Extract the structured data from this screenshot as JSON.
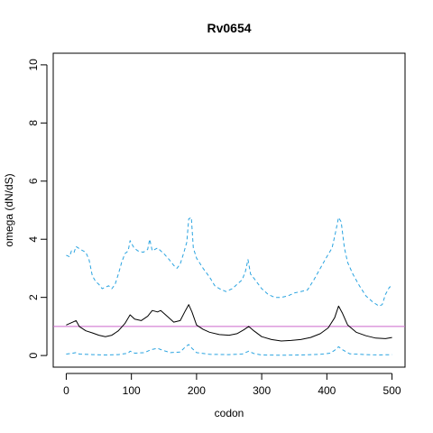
{
  "chart_data": {
    "type": "line",
    "title": "Rv0654",
    "xlabel": "codon",
    "ylabel": "omega (dN/dS)",
    "xlim": [
      -20,
      520
    ],
    "ylim": [
      -0.4,
      10.4
    ],
    "x_ticks": [
      0,
      100,
      200,
      300,
      400,
      500
    ],
    "y_ticks": [
      0,
      2,
      4,
      6,
      8,
      10
    ],
    "grid": false,
    "reference_line": {
      "y": 1,
      "color": "#cc66cc"
    },
    "series": [
      {
        "style": "solid",
        "color": "#000000",
        "points": [
          [
            0,
            1.05
          ],
          [
            10,
            1.15
          ],
          [
            15,
            1.2
          ],
          [
            20,
            1.0
          ],
          [
            30,
            0.85
          ],
          [
            40,
            0.78
          ],
          [
            50,
            0.7
          ],
          [
            60,
            0.65
          ],
          [
            70,
            0.7
          ],
          [
            80,
            0.85
          ],
          [
            90,
            1.1
          ],
          [
            98,
            1.4
          ],
          [
            105,
            1.25
          ],
          [
            115,
            1.2
          ],
          [
            125,
            1.35
          ],
          [
            132,
            1.55
          ],
          [
            140,
            1.5
          ],
          [
            145,
            1.55
          ],
          [
            155,
            1.35
          ],
          [
            165,
            1.15
          ],
          [
            175,
            1.2
          ],
          [
            183,
            1.55
          ],
          [
            188,
            1.75
          ],
          [
            193,
            1.5
          ],
          [
            200,
            1.05
          ],
          [
            210,
            0.9
          ],
          [
            220,
            0.8
          ],
          [
            235,
            0.72
          ],
          [
            250,
            0.7
          ],
          [
            262,
            0.75
          ],
          [
            272,
            0.88
          ],
          [
            280,
            1.0
          ],
          [
            288,
            0.85
          ],
          [
            300,
            0.65
          ],
          [
            315,
            0.55
          ],
          [
            330,
            0.5
          ],
          [
            345,
            0.52
          ],
          [
            360,
            0.55
          ],
          [
            375,
            0.62
          ],
          [
            390,
            0.75
          ],
          [
            402,
            0.95
          ],
          [
            412,
            1.3
          ],
          [
            418,
            1.7
          ],
          [
            424,
            1.45
          ],
          [
            432,
            1.05
          ],
          [
            445,
            0.8
          ],
          [
            460,
            0.68
          ],
          [
            475,
            0.6
          ],
          [
            490,
            0.58
          ],
          [
            500,
            0.62
          ]
        ]
      },
      {
        "style": "dashed",
        "color": "#29a3e0",
        "points": [
          [
            0,
            3.45
          ],
          [
            5,
            3.4
          ],
          [
            8,
            3.6
          ],
          [
            12,
            3.55
          ],
          [
            15,
            3.75
          ],
          [
            22,
            3.65
          ],
          [
            30,
            3.55
          ],
          [
            35,
            3.3
          ],
          [
            40,
            2.75
          ],
          [
            45,
            2.55
          ],
          [
            50,
            2.45
          ],
          [
            55,
            2.3
          ],
          [
            60,
            2.35
          ],
          [
            65,
            2.4
          ],
          [
            70,
            2.3
          ],
          [
            75,
            2.45
          ],
          [
            80,
            2.8
          ],
          [
            85,
            3.2
          ],
          [
            90,
            3.5
          ],
          [
            95,
            3.6
          ],
          [
            98,
            3.95
          ],
          [
            104,
            3.7
          ],
          [
            110,
            3.6
          ],
          [
            118,
            3.55
          ],
          [
            125,
            3.65
          ],
          [
            128,
            4.0
          ],
          [
            132,
            3.6
          ],
          [
            140,
            3.7
          ],
          [
            150,
            3.5
          ],
          [
            158,
            3.3
          ],
          [
            165,
            3.1
          ],
          [
            170,
            3.0
          ],
          [
            175,
            3.15
          ],
          [
            180,
            3.5
          ],
          [
            185,
            3.9
          ],
          [
            188,
            4.7
          ],
          [
            192,
            4.75
          ],
          [
            195,
            3.7
          ],
          [
            200,
            3.35
          ],
          [
            210,
            3.0
          ],
          [
            220,
            2.7
          ],
          [
            228,
            2.4
          ],
          [
            235,
            2.3
          ],
          [
            245,
            2.2
          ],
          [
            255,
            2.3
          ],
          [
            262,
            2.45
          ],
          [
            270,
            2.6
          ],
          [
            275,
            2.9
          ],
          [
            279,
            3.3
          ],
          [
            283,
            2.8
          ],
          [
            290,
            2.6
          ],
          [
            300,
            2.3
          ],
          [
            310,
            2.1
          ],
          [
            320,
            2.0
          ],
          [
            330,
            2.0
          ],
          [
            340,
            2.05
          ],
          [
            350,
            2.15
          ],
          [
            360,
            2.2
          ],
          [
            370,
            2.25
          ],
          [
            380,
            2.6
          ],
          [
            390,
            3.0
          ],
          [
            400,
            3.4
          ],
          [
            408,
            3.7
          ],
          [
            413,
            4.2
          ],
          [
            418,
            4.75
          ],
          [
            422,
            4.6
          ],
          [
            427,
            3.7
          ],
          [
            432,
            3.2
          ],
          [
            440,
            2.8
          ],
          [
            450,
            2.4
          ],
          [
            460,
            2.05
          ],
          [
            470,
            1.85
          ],
          [
            480,
            1.7
          ],
          [
            485,
            1.75
          ],
          [
            490,
            2.1
          ],
          [
            496,
            2.35
          ],
          [
            500,
            2.4
          ]
        ]
      },
      {
        "style": "dashed",
        "color": "#29a3e0",
        "points": [
          [
            0,
            0.05
          ],
          [
            10,
            0.08
          ],
          [
            15,
            0.1
          ],
          [
            20,
            0.05
          ],
          [
            40,
            0.03
          ],
          [
            60,
            0.02
          ],
          [
            80,
            0.03
          ],
          [
            95,
            0.08
          ],
          [
            98,
            0.15
          ],
          [
            105,
            0.08
          ],
          [
            120,
            0.1
          ],
          [
            130,
            0.2
          ],
          [
            140,
            0.25
          ],
          [
            148,
            0.18
          ],
          [
            160,
            0.1
          ],
          [
            175,
            0.12
          ],
          [
            183,
            0.3
          ],
          [
            188,
            0.38
          ],
          [
            193,
            0.25
          ],
          [
            200,
            0.1
          ],
          [
            220,
            0.04
          ],
          [
            250,
            0.03
          ],
          [
            270,
            0.05
          ],
          [
            280,
            0.15
          ],
          [
            288,
            0.07
          ],
          [
            300,
            0.02
          ],
          [
            330,
            0.01
          ],
          [
            360,
            0.02
          ],
          [
            390,
            0.04
          ],
          [
            405,
            0.08
          ],
          [
            412,
            0.18
          ],
          [
            418,
            0.3
          ],
          [
            424,
            0.2
          ],
          [
            435,
            0.06
          ],
          [
            460,
            0.03
          ],
          [
            480,
            0.02
          ],
          [
            500,
            0.03
          ]
        ]
      }
    ]
  }
}
